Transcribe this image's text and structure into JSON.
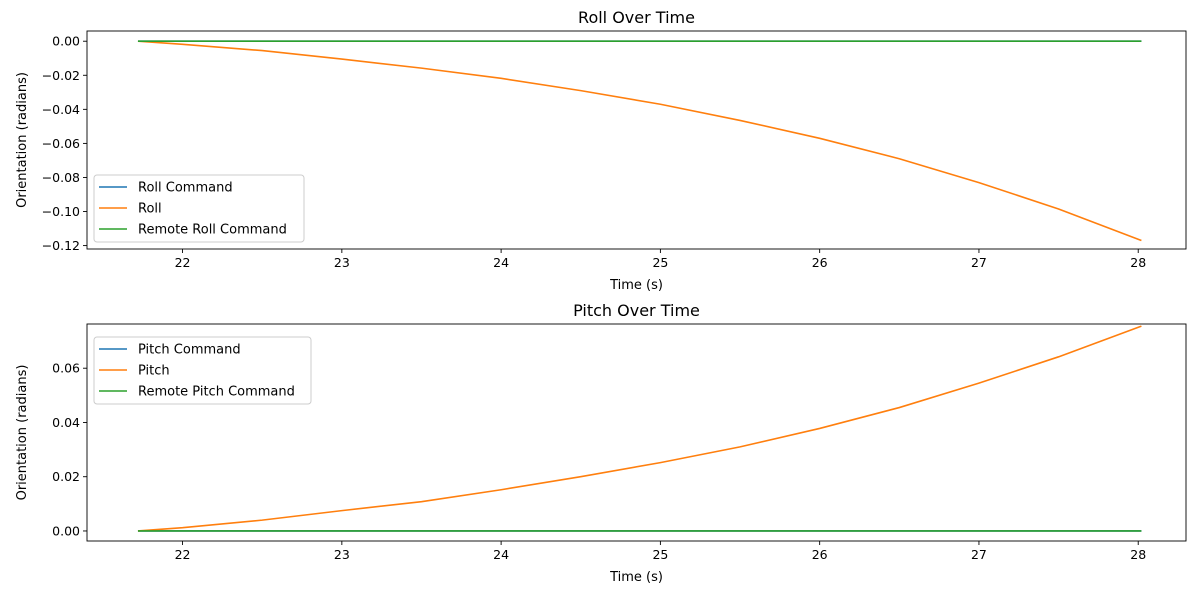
{
  "chart_data": [
    {
      "type": "line",
      "title": "Roll Over Time",
      "xlabel": "Time (s)",
      "ylabel": "Orientation (radians)",
      "xlim": [
        21.4,
        28.3
      ],
      "ylim": [
        -0.122,
        0.006
      ],
      "xticks": [
        22,
        23,
        24,
        25,
        26,
        27,
        28
      ],
      "xtick_labels": [
        "22",
        "23",
        "24",
        "25",
        "26",
        "27",
        "28"
      ],
      "yticks": [
        0.0,
        -0.02,
        -0.04,
        -0.06,
        -0.08,
        -0.1,
        -0.12
      ],
      "ytick_labels": [
        "0.00",
        "−0.02",
        "−0.04",
        "−0.06",
        "−0.08",
        "−0.10",
        "−0.12"
      ],
      "legend_position": "lower-left",
      "series": [
        {
          "name": "Roll Command",
          "color": "#1f77b4",
          "x": [
            21.72,
            28.02
          ],
          "y": [
            0.0,
            0.0
          ]
        },
        {
          "name": "Roll",
          "color": "#ff7f0e",
          "x": [
            21.72,
            22.0,
            22.5,
            23.0,
            23.5,
            24.0,
            24.5,
            25.0,
            25.5,
            26.0,
            26.5,
            27.0,
            27.5,
            28.02
          ],
          "y": [
            0.0,
            -0.0018,
            -0.0055,
            -0.0105,
            -0.0158,
            -0.0218,
            -0.029,
            -0.037,
            -0.0465,
            -0.057,
            -0.069,
            -0.083,
            -0.0985,
            -0.117
          ]
        },
        {
          "name": "Remote Roll Command",
          "color": "#2ca02c",
          "x": [
            21.72,
            28.02
          ],
          "y": [
            0.0,
            0.0
          ]
        }
      ]
    },
    {
      "type": "line",
      "title": "Pitch Over Time",
      "xlabel": "Time (s)",
      "ylabel": "Orientation (radians)",
      "xlim": [
        21.4,
        28.3
      ],
      "ylim": [
        -0.0037,
        0.0763
      ],
      "xticks": [
        22,
        23,
        24,
        25,
        26,
        27,
        28
      ],
      "xtick_labels": [
        "22",
        "23",
        "24",
        "25",
        "26",
        "27",
        "28"
      ],
      "yticks": [
        0.0,
        0.02,
        0.04,
        0.06
      ],
      "ytick_labels": [
        "0.00",
        "0.02",
        "0.04",
        "0.06"
      ],
      "legend_position": "upper-left",
      "series": [
        {
          "name": "Pitch Command",
          "color": "#1f77b4",
          "x": [
            21.72,
            28.02
          ],
          "y": [
            0.0,
            0.0
          ]
        },
        {
          "name": "Pitch",
          "color": "#ff7f0e",
          "x": [
            21.72,
            22.0,
            22.5,
            23.0,
            23.5,
            24.0,
            24.5,
            25.0,
            25.5,
            26.0,
            26.5,
            27.0,
            27.5,
            28.02
          ],
          "y": [
            0.0,
            0.0012,
            0.004,
            0.0075,
            0.0108,
            0.0152,
            0.02,
            0.0252,
            0.031,
            0.0378,
            0.0455,
            0.0545,
            0.0642,
            0.0755
          ]
        },
        {
          "name": "Remote Pitch Command",
          "color": "#2ca02c",
          "x": [
            21.72,
            28.02
          ],
          "y": [
            0.0,
            0.0
          ]
        }
      ]
    }
  ]
}
